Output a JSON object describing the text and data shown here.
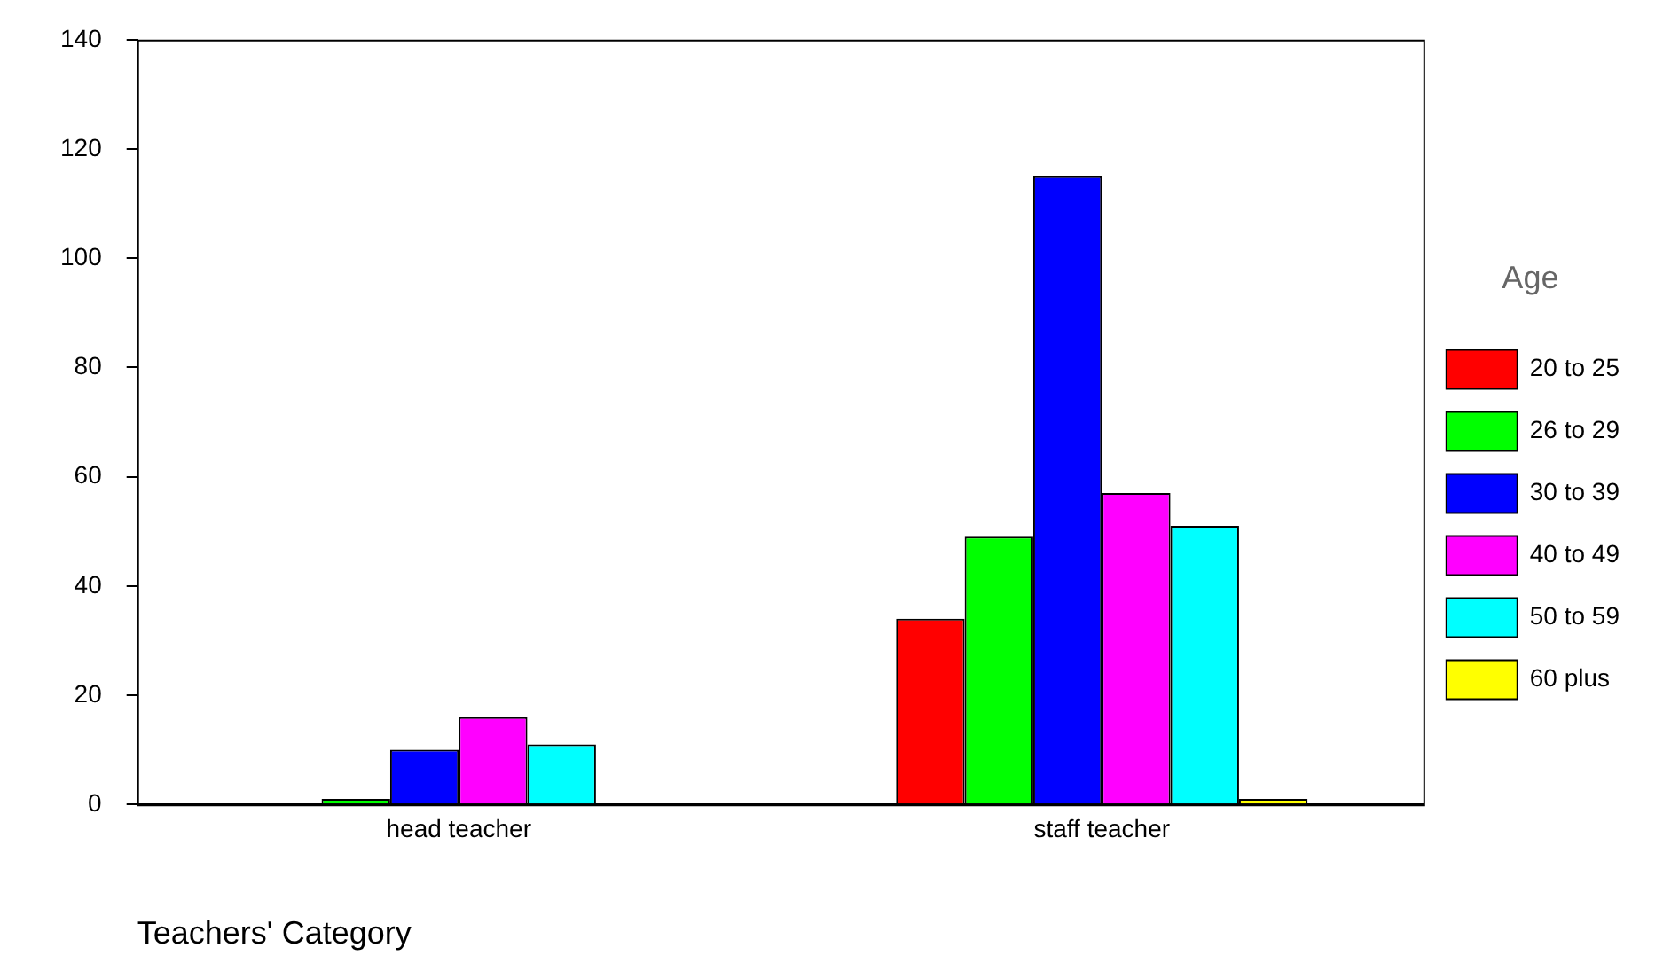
{
  "chart_data": {
    "type": "bar",
    "xlabel": "Teachers' Category",
    "legend_title": "Age",
    "categories": [
      "head teacher",
      "staff teacher"
    ],
    "series": [
      {
        "name": "20 to 25",
        "color": "#ff0000",
        "values": [
          0,
          34
        ]
      },
      {
        "name": "26 to 29",
        "color": "#00ff00",
        "values": [
          1,
          49
        ]
      },
      {
        "name": "30 to 39",
        "color": "#0000ff",
        "values": [
          10,
          115
        ]
      },
      {
        "name": "40 to 49",
        "color": "#ff00ff",
        "values": [
          16,
          57
        ]
      },
      {
        "name": "50 to 59",
        "color": "#00ffff",
        "values": [
          11,
          51
        ]
      },
      {
        "name": "60 plus",
        "color": "#ffff00",
        "values": [
          0,
          1
        ]
      }
    ],
    "ylim": [
      0,
      140
    ],
    "yticks": [
      0,
      20,
      40,
      60,
      80,
      100,
      120,
      140
    ],
    "grid": false,
    "legend": "right"
  }
}
